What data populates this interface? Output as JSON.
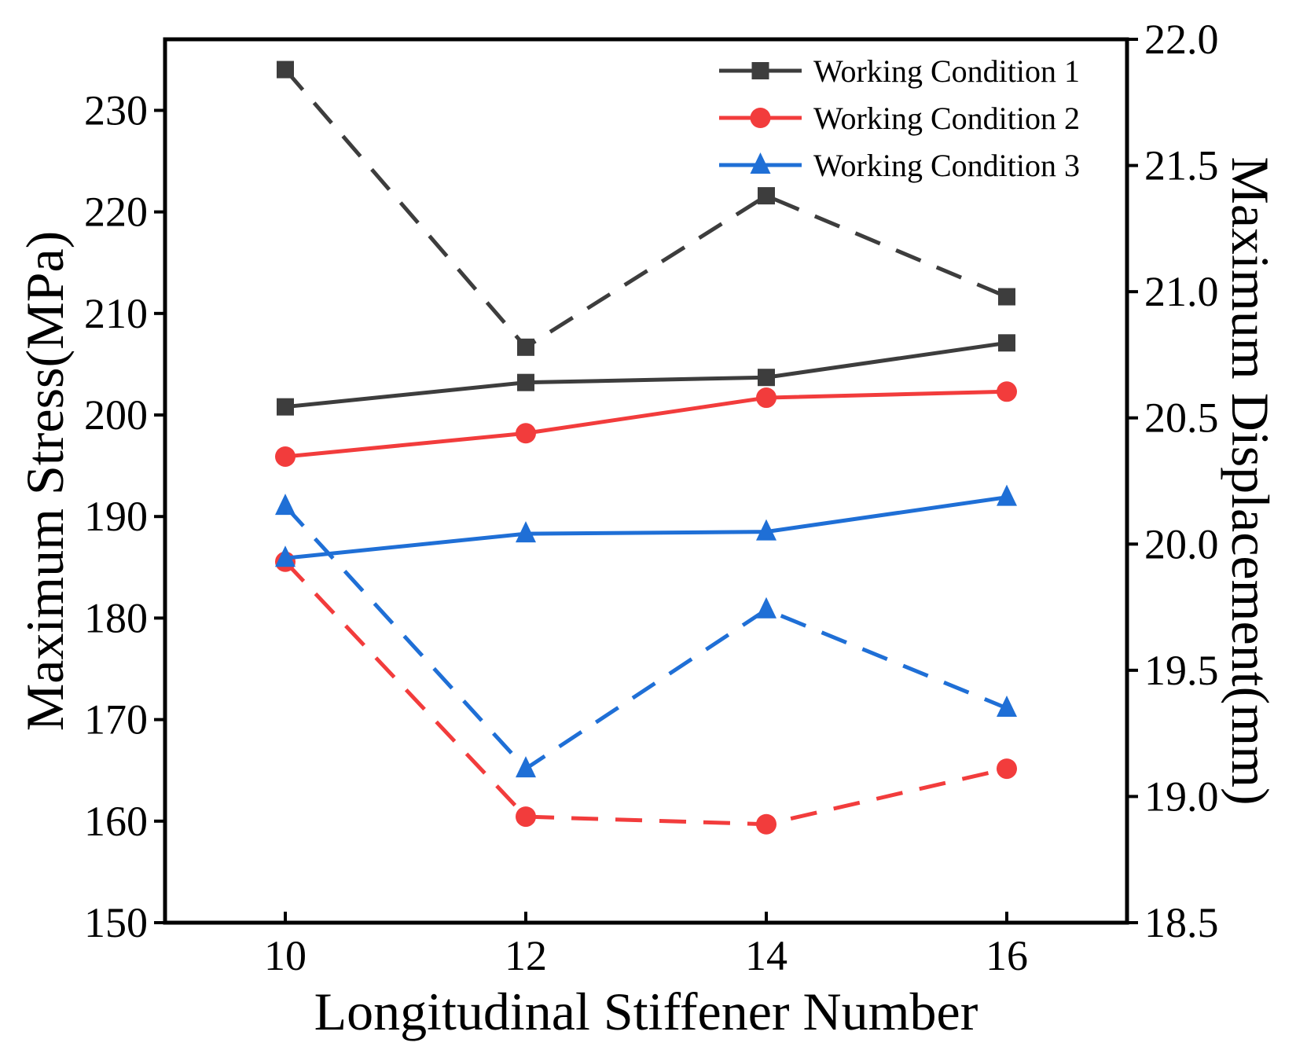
{
  "chart_data": {
    "type": "line",
    "xlabel": "Longitudinal Stiffener Number",
    "ylabel_left": "Maximum Stress(MPa)",
    "ylabel_right": "Maximum Displacement(mm)",
    "x": [
      10,
      12,
      14,
      16
    ],
    "x_ticks": [
      "10",
      "12",
      "14",
      "16"
    ],
    "xlim": [
      9,
      17
    ],
    "ylim_left": [
      150,
      237
    ],
    "ylim_right": [
      18.5,
      22.0
    ],
    "y_ticks_left": [
      "150",
      "160",
      "170",
      "180",
      "190",
      "200",
      "210",
      "220",
      "230"
    ],
    "y_ticks_right": [
      "18.5",
      "19.0",
      "19.5",
      "20.0",
      "20.5",
      "21.0",
      "21.5",
      "22.0"
    ],
    "legend_position": "top-right",
    "series": [
      {
        "name": "Working Condition 1",
        "color": "#3d3d3d",
        "marker": "square",
        "stress": [
          200.8,
          203.2,
          203.7,
          207.1
        ],
        "displacement": [
          21.88,
          20.78,
          21.38,
          20.98
        ]
      },
      {
        "name": "Working Condition 2",
        "color": "#f23c3c",
        "marker": "circle",
        "stress": [
          195.9,
          198.2,
          201.7,
          202.3
        ],
        "displacement": [
          19.93,
          18.92,
          18.89,
          19.11
        ]
      },
      {
        "name": "Working Condition 3",
        "color": "#1f6fd6",
        "marker": "triangle",
        "stress": [
          185.9,
          188.3,
          188.5,
          191.9
        ],
        "displacement": [
          20.15,
          19.11,
          19.74,
          19.35
        ]
      }
    ]
  }
}
